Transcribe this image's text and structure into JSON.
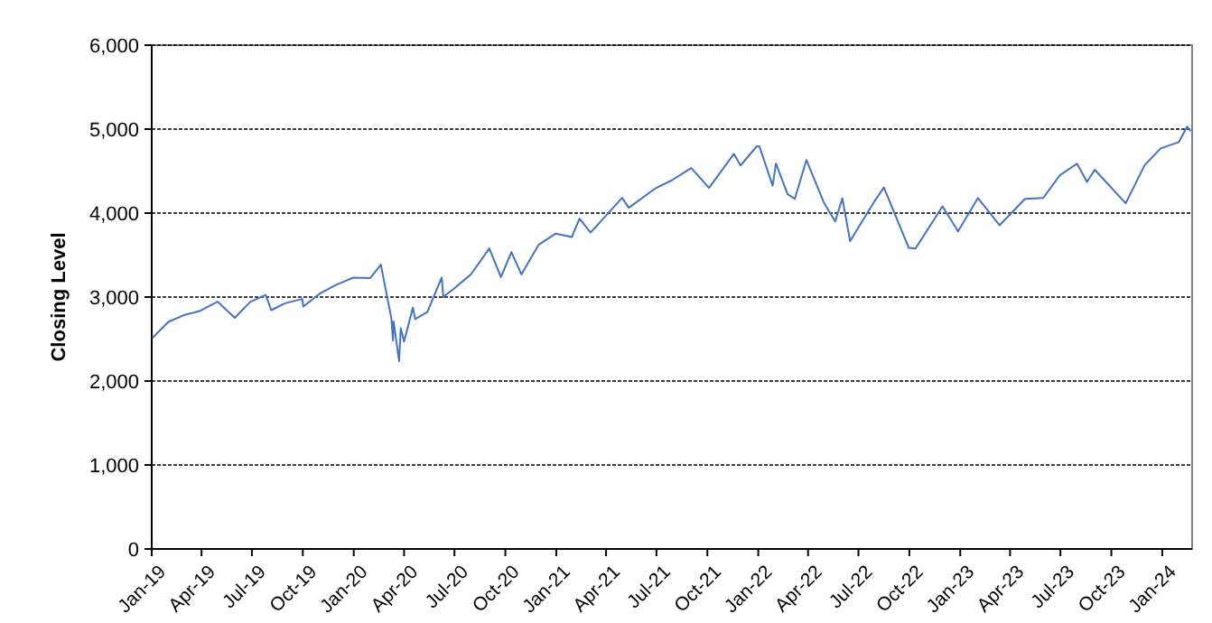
{
  "chart_data": {
    "type": "line",
    "ylabel": "Closing Level",
    "grid": "y",
    "xlim": [
      "2019-01-01",
      "2024-02-24"
    ],
    "ylim": [
      0,
      6000
    ],
    "yticks": [
      {
        "value": 0,
        "label": "0"
      },
      {
        "value": 1000,
        "label": "1,000"
      },
      {
        "value": 2000,
        "label": "2,000"
      },
      {
        "value": 3000,
        "label": "3,000"
      },
      {
        "value": 4000,
        "label": "4,000"
      },
      {
        "value": 5000,
        "label": "5,000"
      },
      {
        "value": 6000,
        "label": "6,000"
      }
    ],
    "xticks": [
      {
        "value": "2019-01",
        "label": "Jan-19"
      },
      {
        "value": "2019-04",
        "label": "Apr-19"
      },
      {
        "value": "2019-07",
        "label": "Jul-19"
      },
      {
        "value": "2019-10",
        "label": "Oct-19"
      },
      {
        "value": "2020-01",
        "label": "Jan-20"
      },
      {
        "value": "2020-04",
        "label": "Apr-20"
      },
      {
        "value": "2020-07",
        "label": "Jul-20"
      },
      {
        "value": "2020-10",
        "label": "Oct-20"
      },
      {
        "value": "2021-01",
        "label": "Jan-21"
      },
      {
        "value": "2021-04",
        "label": "Apr-21"
      },
      {
        "value": "2021-07",
        "label": "Jul-21"
      },
      {
        "value": "2021-10",
        "label": "Oct-21"
      },
      {
        "value": "2022-01",
        "label": "Jan-22"
      },
      {
        "value": "2022-04",
        "label": "Apr-22"
      },
      {
        "value": "2022-07",
        "label": "Jul-22"
      },
      {
        "value": "2022-10",
        "label": "Oct-22"
      },
      {
        "value": "2023-01",
        "label": "Jan-23"
      },
      {
        "value": "2023-04",
        "label": "Apr-23"
      },
      {
        "value": "2023-07",
        "label": "Jul-23"
      },
      {
        "value": "2023-10",
        "label": "Oct-23"
      },
      {
        "value": "2024-01",
        "label": "Jan-24"
      }
    ],
    "x": [
      "2019-01-02",
      "2019-01-31",
      "2019-02-28",
      "2019-03-29",
      "2019-04-30",
      "2019-05-31",
      "2019-06-28",
      "2019-07-26",
      "2019-08-05",
      "2019-08-30",
      "2019-09-30",
      "2019-10-02",
      "2019-10-31",
      "2019-11-29",
      "2019-12-31",
      "2020-01-31",
      "2020-02-19",
      "2020-03-09",
      "2020-03-12",
      "2020-03-13",
      "2020-03-23",
      "2020-03-26",
      "2020-04-01",
      "2020-04-17",
      "2020-04-21",
      "2020-05-13",
      "2020-06-08",
      "2020-06-11",
      "2020-06-30",
      "2020-07-31",
      "2020-09-02",
      "2020-09-23",
      "2020-10-12",
      "2020-10-30",
      "2020-11-30",
      "2020-12-31",
      "2021-01-29",
      "2021-02-12",
      "2021-03-04",
      "2021-04-30",
      "2021-05-12",
      "2021-06-30",
      "2021-07-30",
      "2021-09-02",
      "2021-10-04",
      "2021-11-18",
      "2021-11-30",
      "2021-12-29",
      "2022-01-03",
      "2022-01-27",
      "2022-02-02",
      "2022-02-23",
      "2022-03-08",
      "2022-03-29",
      "2022-04-29",
      "2022-05-20",
      "2022-06-02",
      "2022-06-16",
      "2022-07-29",
      "2022-08-16",
      "2022-09-30",
      "2022-10-12",
      "2022-11-30",
      "2022-12-28",
      "2023-02-02",
      "2023-03-13",
      "2023-04-28",
      "2023-05-31",
      "2023-06-30",
      "2023-07-31",
      "2023-08-18",
      "2023-09-01",
      "2023-10-27",
      "2023-11-30",
      "2023-12-29",
      "2024-01-31",
      "2024-02-15",
      "2024-02-21"
    ],
    "series": [
      {
        "color": "#4472c4",
        "values": [
          2510,
          2704,
          2784,
          2834,
          2946,
          2752,
          2942,
          3025,
          2844,
          2926,
          2977,
          2887,
          3038,
          3141,
          3231,
          3226,
          3386,
          2747,
          2481,
          2711,
          2237,
          2630,
          2471,
          2875,
          2737,
          2820,
          3232,
          3002,
          3100,
          3271,
          3580,
          3237,
          3535,
          3270,
          3622,
          3756,
          3714,
          3934,
          3768,
          4181,
          4063,
          4298,
          4395,
          4537,
          4300,
          4705,
          4567,
          4793,
          4796,
          4326,
          4589,
          4225,
          4170,
          4632,
          4132,
          3901,
          4176,
          3667,
          4130,
          4305,
          3586,
          3577,
          4080,
          3783,
          4179,
          3855,
          4169,
          4180,
          4450,
          4589,
          4370,
          4516,
          4117,
          4568,
          4770,
          4846,
          5030,
          4976
        ]
      }
    ]
  }
}
